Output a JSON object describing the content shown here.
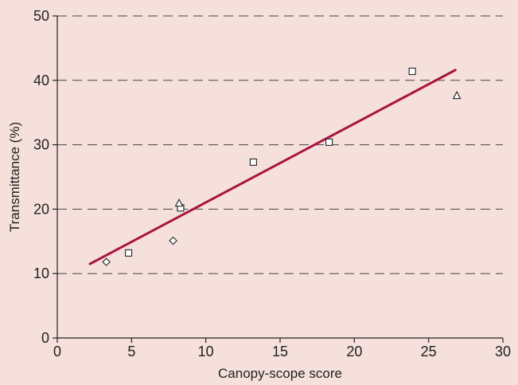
{
  "chart_data": {
    "type": "scatter",
    "title": "",
    "xlabel": "Canopy-scope score",
    "ylabel": "Transmittance (%)",
    "xlim": [
      0,
      30
    ],
    "ylim": [
      0,
      50
    ],
    "x_ticks": [
      0,
      5,
      10,
      15,
      20,
      25,
      30
    ],
    "y_ticks": [
      0,
      10,
      20,
      30,
      40,
      50
    ],
    "grid": "horizontal dashed",
    "series": [
      {
        "marker": "square",
        "points": [
          {
            "x": 4.8,
            "y": 13.2
          },
          {
            "x": 8.3,
            "y": 20.2
          },
          {
            "x": 13.2,
            "y": 27.3
          },
          {
            "x": 18.3,
            "y": 30.4
          },
          {
            "x": 23.9,
            "y": 41.4
          }
        ]
      },
      {
        "marker": "diamond",
        "points": [
          {
            "x": 3.3,
            "y": 11.8
          },
          {
            "x": 7.8,
            "y": 15.1
          }
        ]
      },
      {
        "marker": "triangle",
        "points": [
          {
            "x": 8.2,
            "y": 20.9
          },
          {
            "x": 26.9,
            "y": 37.6
          }
        ]
      }
    ],
    "trendline": {
      "x": [
        2.2,
        26.8
      ],
      "y": [
        11.5,
        41.6
      ],
      "color": "#a8153f"
    }
  }
}
